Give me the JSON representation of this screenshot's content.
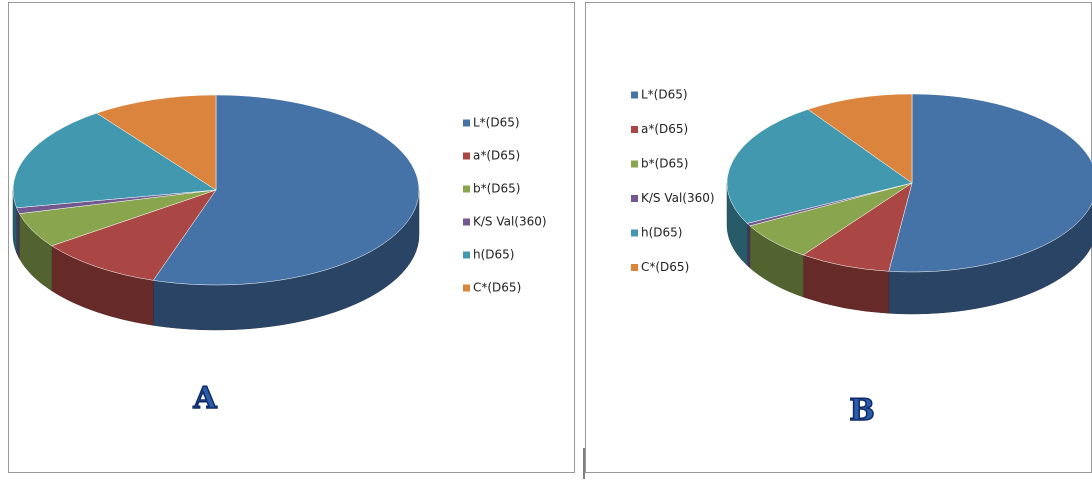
{
  "chart_data": [
    {
      "type": "pie3d",
      "label": "A",
      "categories": [
        "L*(D65)",
        "a*(D65)",
        "b*(D65)",
        "K/S Val(360)",
        "h(D65)",
        "C*(D65)"
      ],
      "values": [
        55,
        10,
        6,
        1,
        18,
        10
      ],
      "colors": [
        "#4572a7",
        "#aa4643",
        "#89a54e",
        "#71588f",
        "#4198af",
        "#db843d"
      ],
      "legend": "right"
    },
    {
      "type": "pie3d",
      "label": "B",
      "categories": [
        "L*(D65)",
        "a*(D65)",
        "b*(D65)",
        "K/S Val(360)",
        "h(D65)",
        "C*(D65)"
      ],
      "values": [
        52,
        8,
        7,
        0.5,
        23,
        9.5
      ],
      "colors": [
        "#4572a7",
        "#aa4643",
        "#89a54e",
        "#71588f",
        "#4198af",
        "#db843d"
      ],
      "legend": "left"
    }
  ]
}
